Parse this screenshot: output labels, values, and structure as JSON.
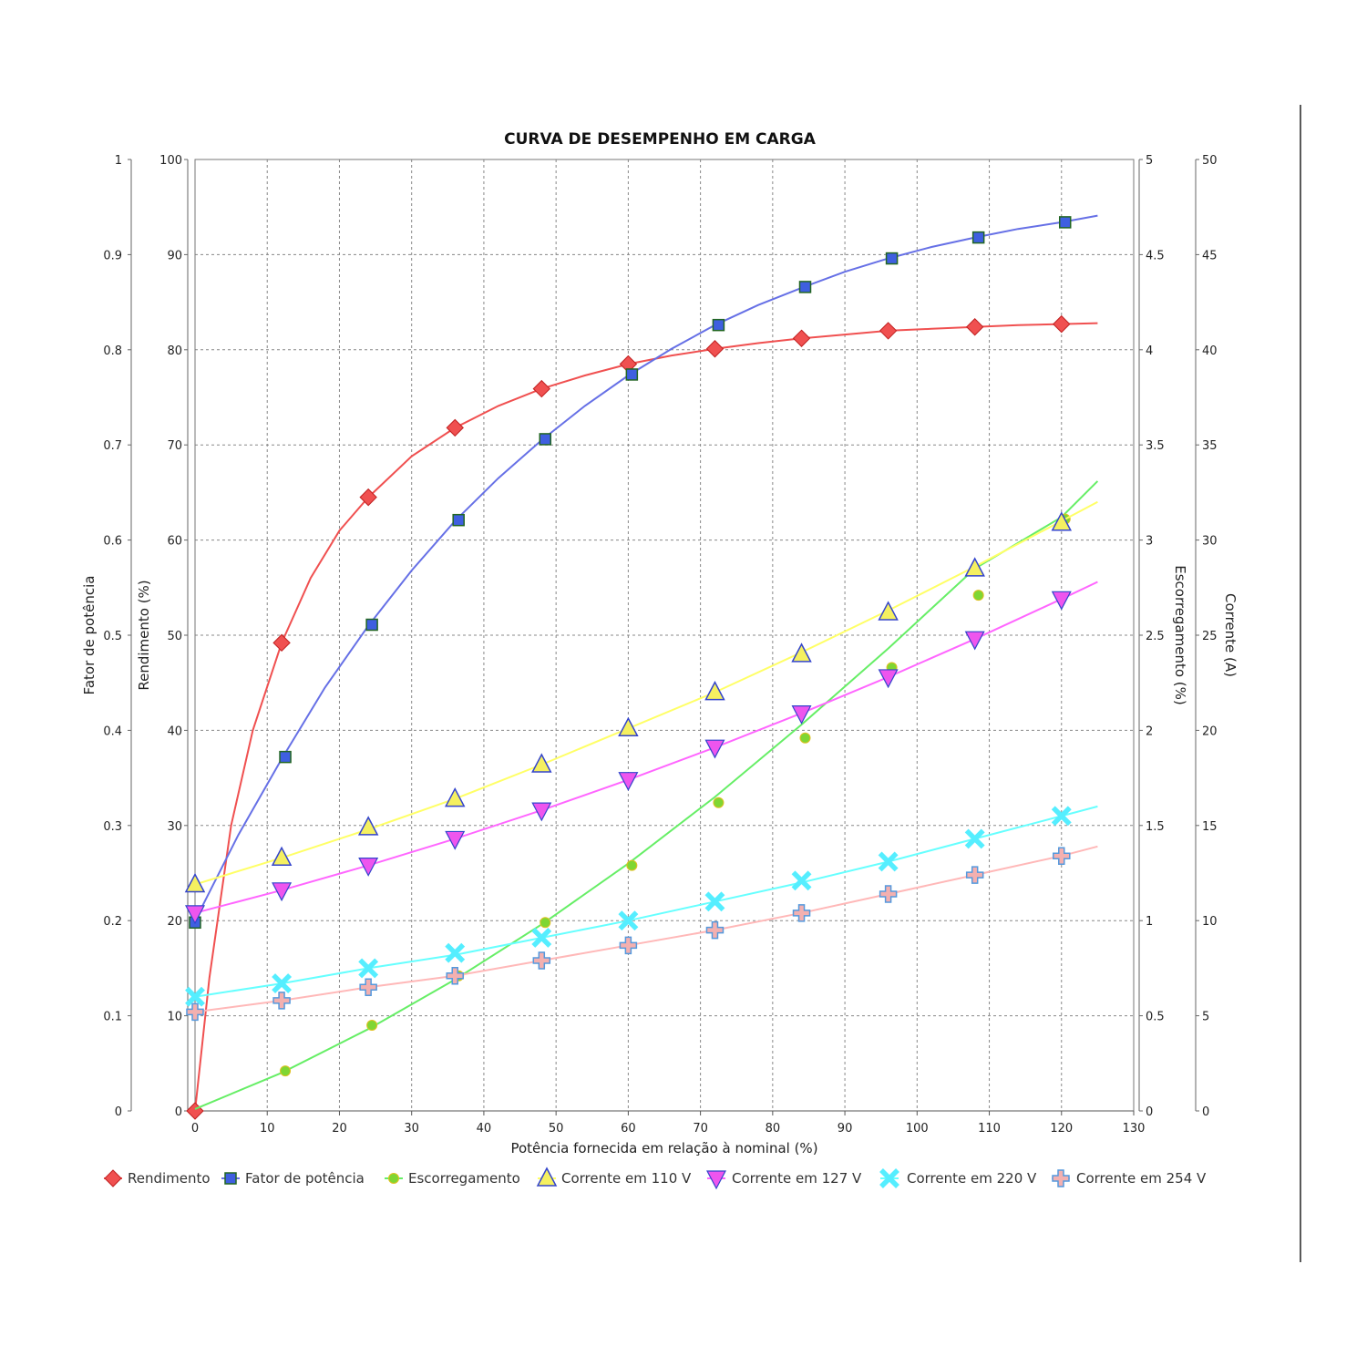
{
  "chart_data": {
    "type": "scatter",
    "title": "CURVA DE DESEMPENHO EM CARGA",
    "xlabel": "Potência fornecida em relação à nominal (%)",
    "xlim": [
      0,
      130
    ],
    "x_ticks": [
      0,
      10,
      20,
      30,
      40,
      50,
      60,
      70,
      80,
      90,
      100,
      110,
      120,
      130
    ],
    "grid": true,
    "legend_position": "bottom",
    "axes": {
      "fp": {
        "label": "Fator de potência",
        "range": [
          0,
          1
        ],
        "ticks": [
          "0",
          "0.1",
          "0.2",
          "0.3",
          "0.4",
          "0.5",
          "0.6",
          "0.7",
          "0.8",
          "0.9",
          "1"
        ],
        "side": "left"
      },
      "rend": {
        "label": "Rendimento (%)",
        "range": [
          0,
          100
        ],
        "ticks": [
          "0",
          "10",
          "20",
          "30",
          "40",
          "50",
          "60",
          "70",
          "80",
          "90",
          "100"
        ],
        "side": "left"
      },
      "esc": {
        "label": "Escorregamento (%)",
        "range": [
          0,
          5
        ],
        "ticks": [
          "0",
          "0.5",
          "1",
          "1.5",
          "2",
          "2.5",
          "3",
          "3.5",
          "4",
          "4.5",
          "5"
        ],
        "side": "right"
      },
      "corr": {
        "label": "Corrente (A)",
        "range": [
          0,
          50
        ],
        "ticks": [
          "0",
          "5",
          "10",
          "15",
          "20",
          "25",
          "30",
          "35",
          "40",
          "45",
          "50"
        ],
        "side": "right"
      }
    },
    "series": [
      {
        "name": "Rendimento",
        "axis": "rend",
        "color": "#f05050",
        "marker": "diamond",
        "x": [
          0,
          12,
          24,
          36,
          48,
          60,
          72,
          84,
          96,
          108,
          120
        ],
        "values": [
          0,
          49.2,
          64.5,
          71.8,
          75.9,
          78.5,
          80.1,
          81.2,
          82.0,
          82.4,
          82.7
        ],
        "curve": [
          [
            0,
            0
          ],
          [
            2,
            14
          ],
          [
            5,
            30
          ],
          [
            8,
            40
          ],
          [
            12,
            49.2
          ],
          [
            16,
            56
          ],
          [
            20,
            61
          ],
          [
            24,
            64.5
          ],
          [
            30,
            68.8
          ],
          [
            36,
            71.8
          ],
          [
            42,
            74.1
          ],
          [
            48,
            75.9
          ],
          [
            54,
            77.3
          ],
          [
            60,
            78.5
          ],
          [
            66,
            79.4
          ],
          [
            72,
            80.1
          ],
          [
            78,
            80.7
          ],
          [
            84,
            81.2
          ],
          [
            90,
            81.6
          ],
          [
            96,
            82.0
          ],
          [
            102,
            82.2
          ],
          [
            108,
            82.4
          ],
          [
            114,
            82.6
          ],
          [
            120,
            82.7
          ],
          [
            125,
            82.8
          ]
        ]
      },
      {
        "name": "Fator de potência",
        "axis": "fp",
        "color": "#3f5fe0",
        "line_color": "#6670e6",
        "marker": "square",
        "x": [
          0,
          12.5,
          24.5,
          36.5,
          48.5,
          60.5,
          72.5,
          84.5,
          96.5,
          108.5,
          120.5
        ],
        "values": [
          0.198,
          0.372,
          0.511,
          0.621,
          0.706,
          0.774,
          0.826,
          0.866,
          0.896,
          0.918,
          0.934
        ],
        "curve": [
          [
            0,
            0.2
          ],
          [
            6,
            0.29
          ],
          [
            12,
            0.37
          ],
          [
            18,
            0.445
          ],
          [
            24,
            0.51
          ],
          [
            30,
            0.568
          ],
          [
            36,
            0.62
          ],
          [
            42,
            0.665
          ],
          [
            48,
            0.705
          ],
          [
            54,
            0.741
          ],
          [
            60,
            0.773
          ],
          [
            66,
            0.801
          ],
          [
            72,
            0.826
          ],
          [
            78,
            0.847
          ],
          [
            84,
            0.865
          ],
          [
            90,
            0.882
          ],
          [
            96,
            0.896
          ],
          [
            102,
            0.908
          ],
          [
            108,
            0.918
          ],
          [
            114,
            0.927
          ],
          [
            120,
            0.934
          ],
          [
            125,
            0.941
          ]
        ]
      },
      {
        "name": "Escorregamento",
        "axis": "esc",
        "color": "#7fd633",
        "line_color": "#66ee66",
        "marker": "circle",
        "x": [
          12.5,
          24.5,
          36.5,
          48.5,
          60.5,
          72.5,
          84.5,
          96.5,
          108.5,
          120.5
        ],
        "values": [
          0.21,
          0.45,
          0.71,
          0.99,
          1.29,
          1.62,
          1.96,
          2.33,
          2.71,
          3.11
        ],
        "curve": [
          [
            0,
            0.01
          ],
          [
            12,
            0.2
          ],
          [
            24,
            0.43
          ],
          [
            36,
            0.69
          ],
          [
            48,
            0.98
          ],
          [
            60,
            1.3
          ],
          [
            72,
            1.65
          ],
          [
            84,
            2.03
          ],
          [
            96,
            2.43
          ],
          [
            108,
            2.85
          ],
          [
            120,
            3.12
          ],
          [
            125,
            3.31
          ]
        ]
      },
      {
        "name": "Corrente em 110 V",
        "axis": "corr",
        "color": "#f5f060",
        "line_color": "#ffff66",
        "edge": "#3344cc",
        "marker": "triangle-up",
        "x": [
          0,
          12,
          24,
          36,
          48,
          60,
          72,
          84,
          96,
          108,
          120
        ],
        "values": [
          11.9,
          13.3,
          14.9,
          16.4,
          18.2,
          20.1,
          22.0,
          24.0,
          26.2,
          28.5,
          30.9
        ],
        "curve": [
          [
            0,
            11.9
          ],
          [
            12,
            13.3
          ],
          [
            24,
            14.8
          ],
          [
            36,
            16.4
          ],
          [
            48,
            18.2
          ],
          [
            60,
            20.1
          ],
          [
            72,
            22.0
          ],
          [
            84,
            24.1
          ],
          [
            96,
            26.3
          ],
          [
            108,
            28.6
          ],
          [
            120,
            31.0
          ],
          [
            125,
            32.0
          ]
        ]
      },
      {
        "name": "Corrente em 127 V",
        "axis": "corr",
        "color": "#ee55ee",
        "line_color": "#ff66ff",
        "edge": "#3344cc",
        "marker": "triangle-down",
        "x": [
          0,
          12,
          24,
          36,
          48,
          60,
          72,
          84,
          96,
          108,
          120
        ],
        "values": [
          10.4,
          11.6,
          12.9,
          14.3,
          15.8,
          17.4,
          19.1,
          20.9,
          22.8,
          24.8,
          26.9
        ],
        "curve": [
          [
            0,
            10.4
          ],
          [
            12,
            11.6
          ],
          [
            24,
            12.9
          ],
          [
            36,
            14.3
          ],
          [
            48,
            15.8
          ],
          [
            60,
            17.4
          ],
          [
            72,
            19.1
          ],
          [
            84,
            20.9
          ],
          [
            96,
            22.8
          ],
          [
            108,
            24.8
          ],
          [
            120,
            26.9
          ],
          [
            125,
            27.8
          ]
        ]
      },
      {
        "name": "Corrente em 220 V",
        "axis": "corr",
        "color": "#55eeff",
        "line_color": "#66ffff",
        "marker": "x",
        "x": [
          0,
          12,
          24,
          36,
          48,
          60,
          72,
          84,
          96,
          108,
          120
        ],
        "values": [
          6.0,
          6.7,
          7.5,
          8.3,
          9.1,
          10.0,
          11.0,
          12.1,
          13.1,
          14.3,
          15.5
        ],
        "curve": [
          [
            0,
            6.0
          ],
          [
            12,
            6.7
          ],
          [
            24,
            7.5
          ],
          [
            36,
            8.2
          ],
          [
            48,
            9.1
          ],
          [
            60,
            10.0
          ],
          [
            72,
            11.0
          ],
          [
            84,
            12.0
          ],
          [
            96,
            13.1
          ],
          [
            108,
            14.3
          ],
          [
            120,
            15.5
          ],
          [
            125,
            16.0
          ]
        ]
      },
      {
        "name": "Corrente em 254 V",
        "axis": "corr",
        "color": "#f3b0b0",
        "line_color": "#ffb8b8",
        "edge": "#5599dd",
        "marker": "plus",
        "x": [
          0,
          12,
          24,
          36,
          48,
          60,
          72,
          84,
          96,
          108,
          120
        ],
        "values": [
          5.2,
          5.8,
          6.5,
          7.1,
          7.9,
          8.7,
          9.5,
          10.4,
          11.4,
          12.4,
          13.4
        ],
        "curve": [
          [
            0,
            5.2
          ],
          [
            12,
            5.8
          ],
          [
            24,
            6.5
          ],
          [
            36,
            7.1
          ],
          [
            48,
            7.9
          ],
          [
            60,
            8.7
          ],
          [
            72,
            9.5
          ],
          [
            84,
            10.4
          ],
          [
            96,
            11.4
          ],
          [
            108,
            12.4
          ],
          [
            120,
            13.4
          ],
          [
            125,
            13.9
          ]
        ]
      }
    ]
  }
}
